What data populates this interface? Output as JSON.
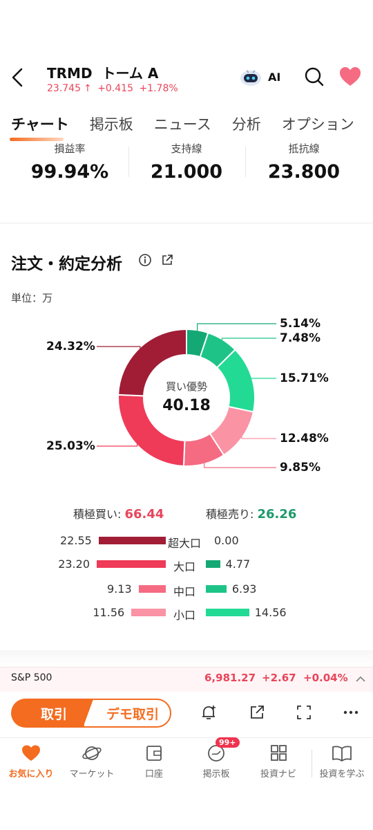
{
  "header": {
    "ticker": "TRMD",
    "name": "トーム A",
    "price": "23.745",
    "change": "+0.415",
    "change_pct": "+1.78%",
    "ai_label": "AI"
  },
  "tabs": [
    "チャート",
    "掲示板",
    "ニュース",
    "分析",
    "オプション"
  ],
  "stats": [
    {
      "label": "損益率",
      "value": "99.94%"
    },
    {
      "label": "支持線",
      "value": "21.000"
    },
    {
      "label": "抵抗線",
      "value": "23.800"
    }
  ],
  "section": {
    "title": "注文・約定分析",
    "unit": "単位：万"
  },
  "donut": {
    "center_label": "買い優勢",
    "center_value": "40.18",
    "segments": [
      {
        "label": "5.14%",
        "value": 5.14,
        "color": "#14a874"
      },
      {
        "label": "7.48%",
        "value": 7.48,
        "color": "#1ec487"
      },
      {
        "label": "15.71%",
        "value": 15.71,
        "color": "#23da95"
      },
      {
        "label": "12.48%",
        "value": 12.48,
        "color": "#fa93a4"
      },
      {
        "label": "9.85%",
        "value": 9.85,
        "color": "#f56b82"
      },
      {
        "label": "25.03%",
        "value": 25.03,
        "color": "#ef3a58"
      },
      {
        "label": "24.32%",
        "value": 24.32,
        "color": "#a01d35"
      }
    ]
  },
  "totals": {
    "buy_label": "積極買い:",
    "buy_value": "66.44",
    "sell_label": "積極売り:",
    "sell_value": "26.26",
    "buy_color": "#e8455a",
    "sell_color": "#1d9a6c"
  },
  "breakdown": [
    {
      "label": "超大口",
      "buy": "22.55",
      "sell": "0.00",
      "buy_num": 22.55,
      "sell_num": 0.0,
      "buy_color": "#a01d35",
      "sell_color": "#14a874"
    },
    {
      "label": "大口",
      "buy": "23.20",
      "sell": "4.77",
      "buy_num": 23.2,
      "sell_num": 4.77,
      "buy_color": "#ef3a58",
      "sell_color": "#14a874"
    },
    {
      "label": "中口",
      "buy": "9.13",
      "sell": "6.93",
      "buy_num": 9.13,
      "sell_num": 6.93,
      "buy_color": "#f56b82",
      "sell_color": "#1ec487"
    },
    {
      "label": "小口",
      "buy": "11.56",
      "sell": "14.56",
      "buy_num": 11.56,
      "sell_num": 14.56,
      "buy_color": "#fa93a4",
      "sell_color": "#23da95"
    }
  ],
  "index_bar": {
    "name": "S&P 500",
    "value": "6,981.27",
    "change": "+2.67",
    "change_pct": "+0.04%"
  },
  "actions": {
    "trade": "取引",
    "demo_trade": "デモ取引"
  },
  "nav": [
    {
      "label": "お気に入り",
      "icon": "heart-icon"
    },
    {
      "label": "マーケット",
      "icon": "planet-icon"
    },
    {
      "label": "口座",
      "icon": "wallet-icon"
    },
    {
      "label": "掲示板",
      "icon": "discussion-icon"
    },
    {
      "label": "投資ナビ",
      "icon": "grid-icon"
    },
    {
      "label": "投資を学ぶ",
      "icon": "book-icon"
    }
  ],
  "nav_badge": "99+",
  "colors": {
    "accent": "#f36c20",
    "up": "#e8455a",
    "down": "#1d9a6c"
  }
}
